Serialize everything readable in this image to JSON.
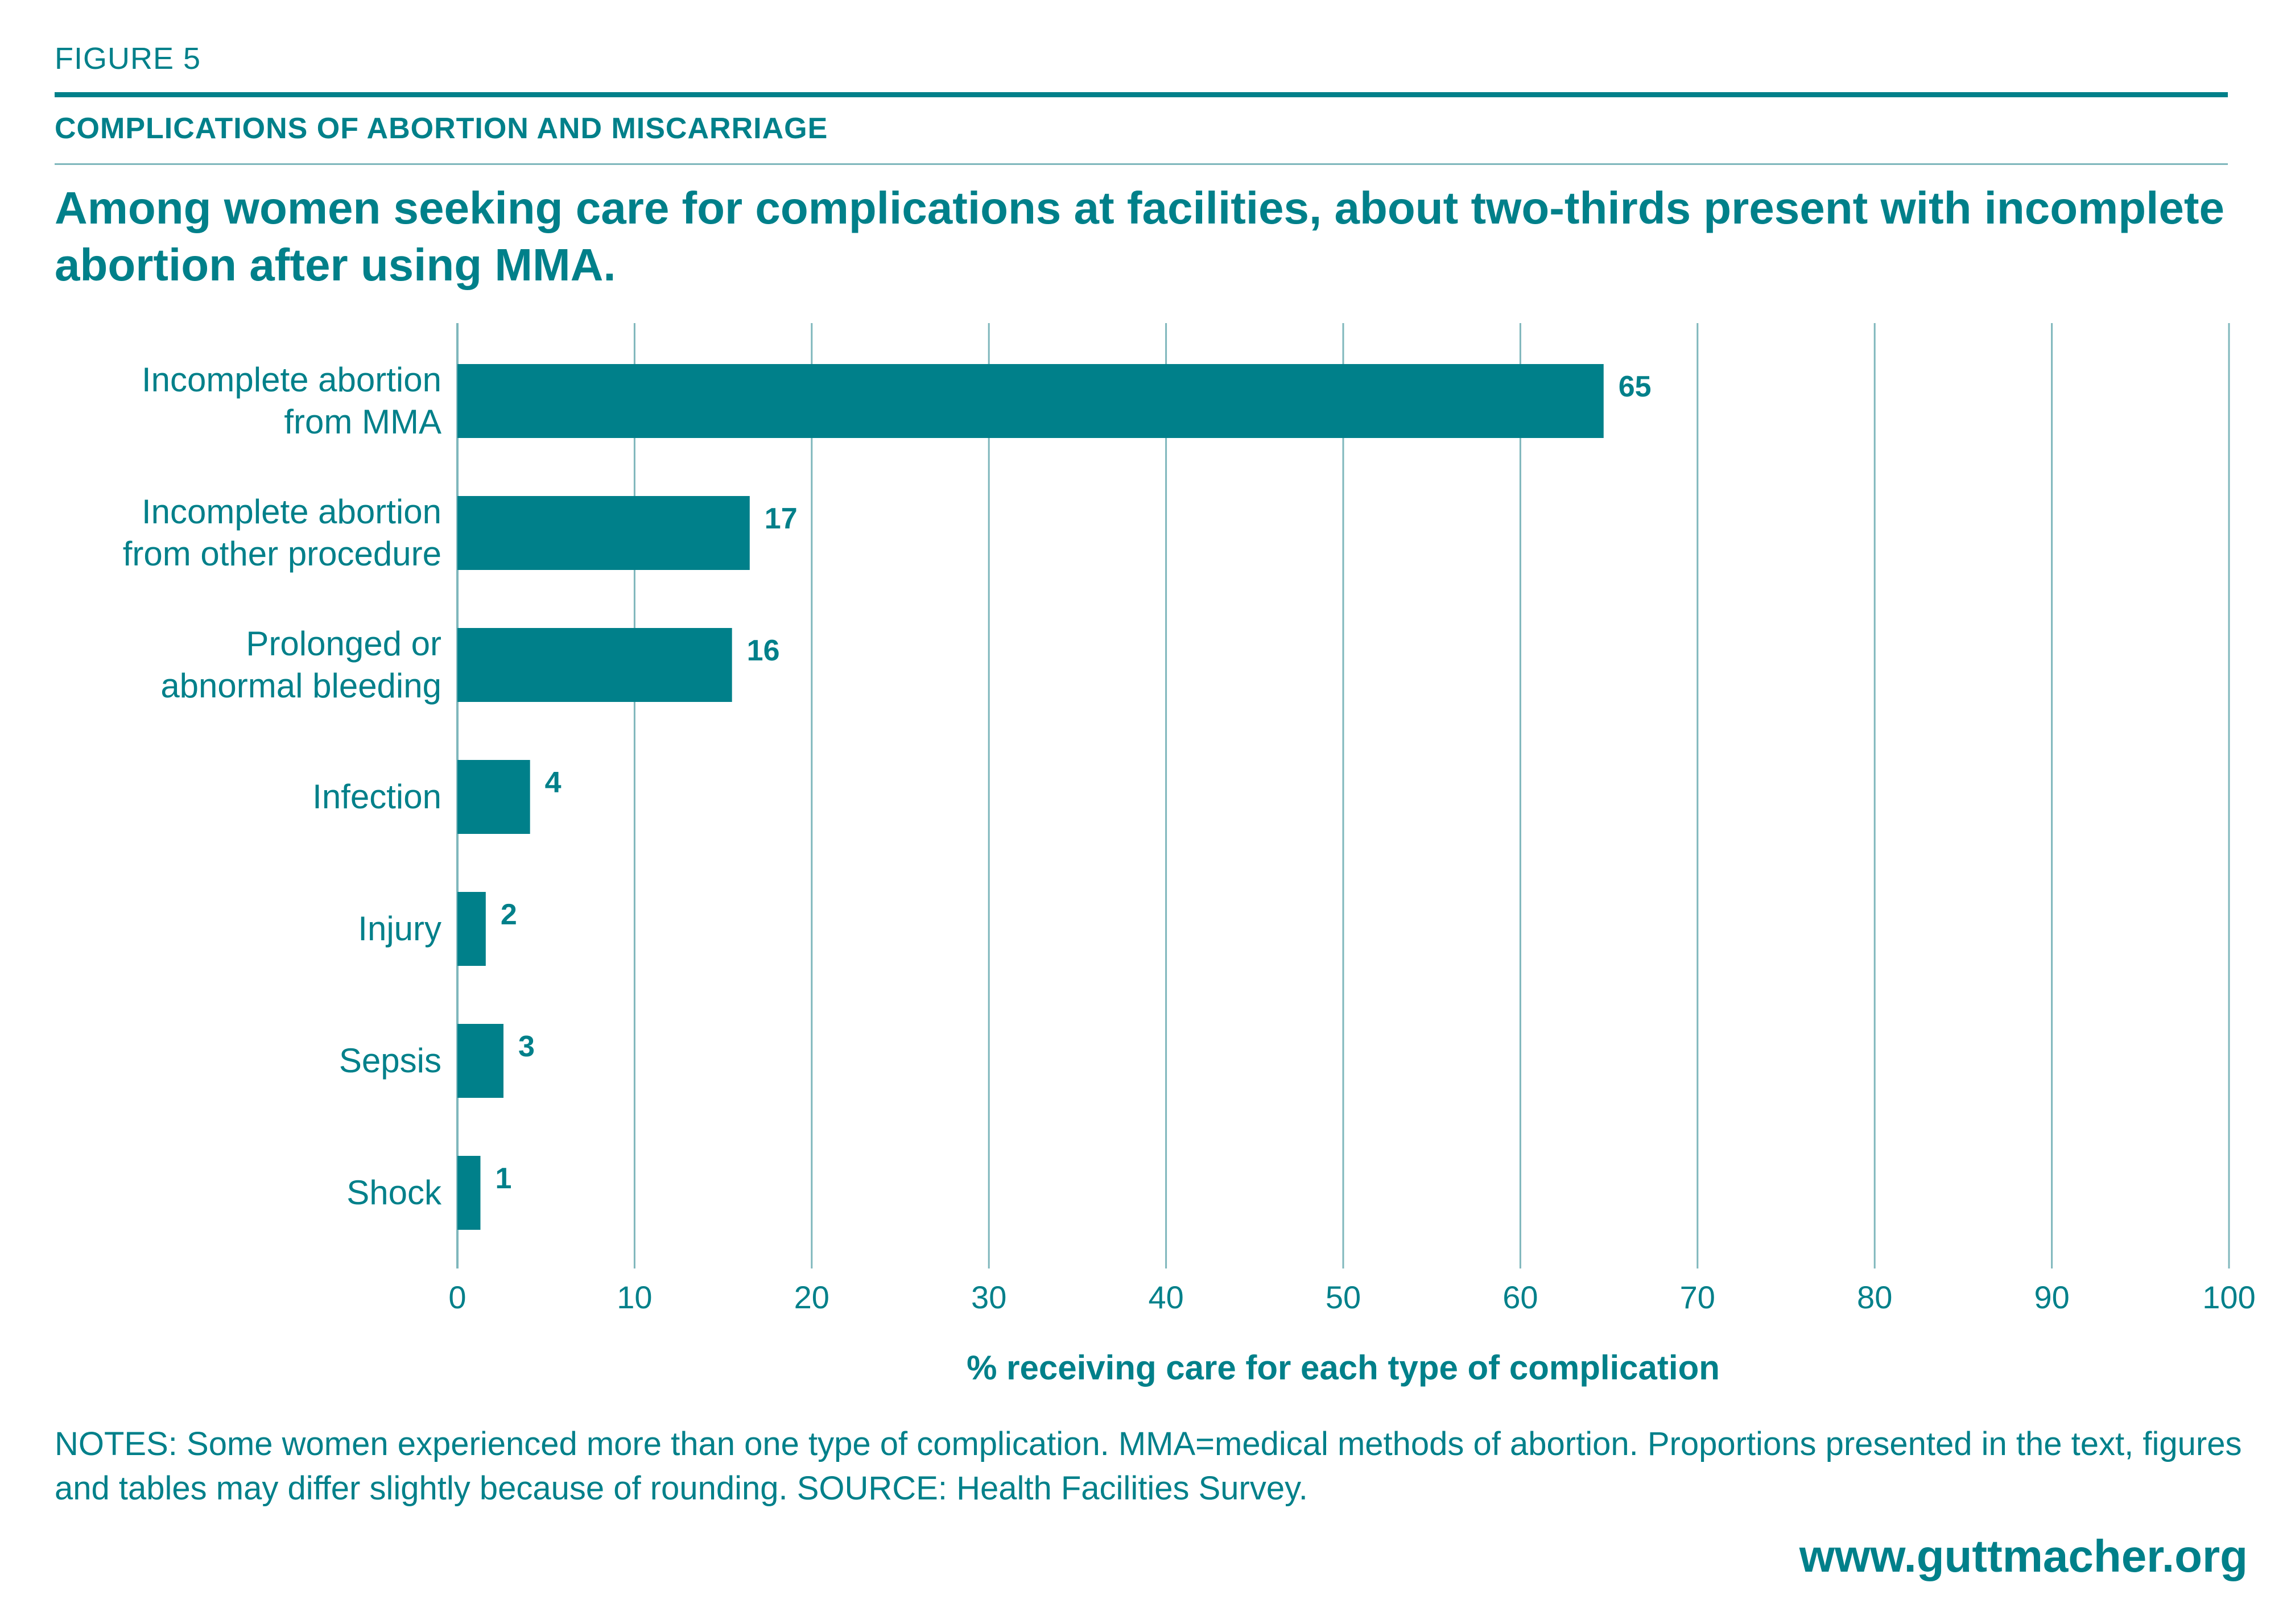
{
  "figure_label": "FIGURE 5",
  "kicker": "COMPLICATIONS OF ABORTION AND MISCARRIAGE",
  "headline": "Among women seeking care for complications at facilities, about two-thirds present with incomplete abortion after using MMA.",
  "notes": "NOTES: Some women experienced more than one type of complication. MMA=medical methods of abortion. Proportions presented in the text, figures and tables may differ slightly because of rounding. SOURCE: Health Facilities Survey.",
  "url": "www.guttmacher.org",
  "colors": {
    "accent": "#00808a",
    "gridline": "#7fb7bc"
  },
  "chart_data": {
    "type": "bar",
    "orientation": "horizontal",
    "categories": [
      [
        "Incomplete abortion",
        "from MMA"
      ],
      [
        "Incomplete abortion",
        "from other procedure"
      ],
      [
        "Prolonged or",
        "abnormal bleeding"
      ],
      [
        "Infection"
      ],
      [
        "Injury"
      ],
      [
        "Sepsis"
      ],
      [
        "Shock"
      ]
    ],
    "values": [
      65,
      17,
      16,
      4,
      2,
      3,
      1
    ],
    "bar_values": [
      64.7,
      16.5,
      15.5,
      4.1,
      1.6,
      2.6,
      1.3
    ],
    "xlabel": "% receiving care for each type of complication",
    "xlim": [
      0,
      100
    ],
    "xticks": [
      0,
      10,
      20,
      30,
      40,
      50,
      60,
      70,
      80,
      90,
      100
    ],
    "grid": true,
    "bar_color": "#00808a"
  }
}
